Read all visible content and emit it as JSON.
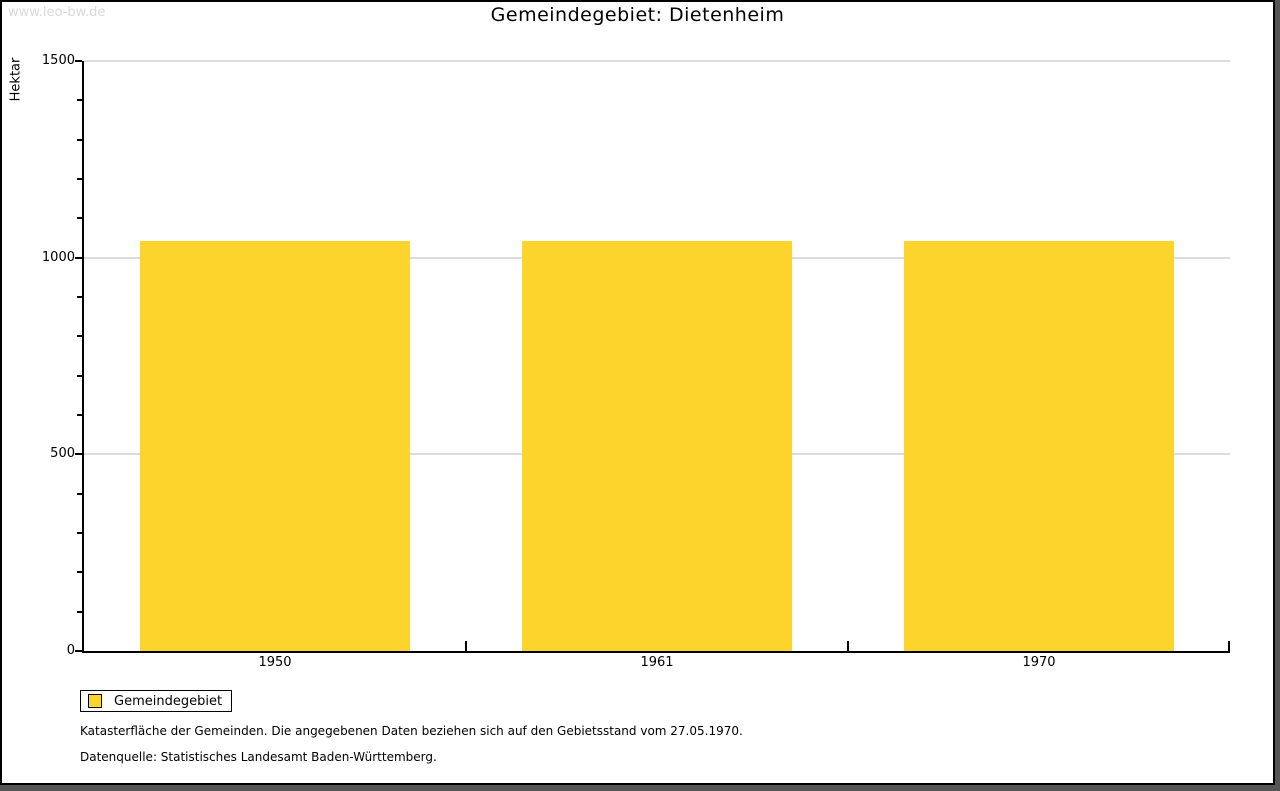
{
  "watermark": "www.leo-bw.de",
  "title": "Gemeindegebiet: Dietenheim",
  "chart_data": {
    "type": "bar",
    "title": "Gemeindegebiet: Dietenheim",
    "categories": [
      "1950",
      "1961",
      "1970"
    ],
    "series": [
      {
        "name": "Gemeindegebiet",
        "values": [
          1042,
          1042,
          1042
        ]
      }
    ],
    "xlabel": "",
    "ylabel": "Hektar",
    "ylim": [
      0,
      1500
    ],
    "y_major_ticks": [
      0,
      500,
      1000,
      1500
    ],
    "y_minor_step": 100,
    "grid": true,
    "legend_position": "bottom-left",
    "bar_color": "#fcd42c",
    "gridline_color": "#dcdcdc"
  },
  "legend": {
    "label": "Gemeindegebiet",
    "swatch_color": "#fcd42c"
  },
  "footnotes": {
    "line1": "Katasterfläche der Gemeinden. Die angegebenen Daten beziehen sich auf den Gebietsstand vom 27.05.1970.",
    "line2": "Datenquelle: Statistisches Landesamt Baden-Württemberg."
  }
}
